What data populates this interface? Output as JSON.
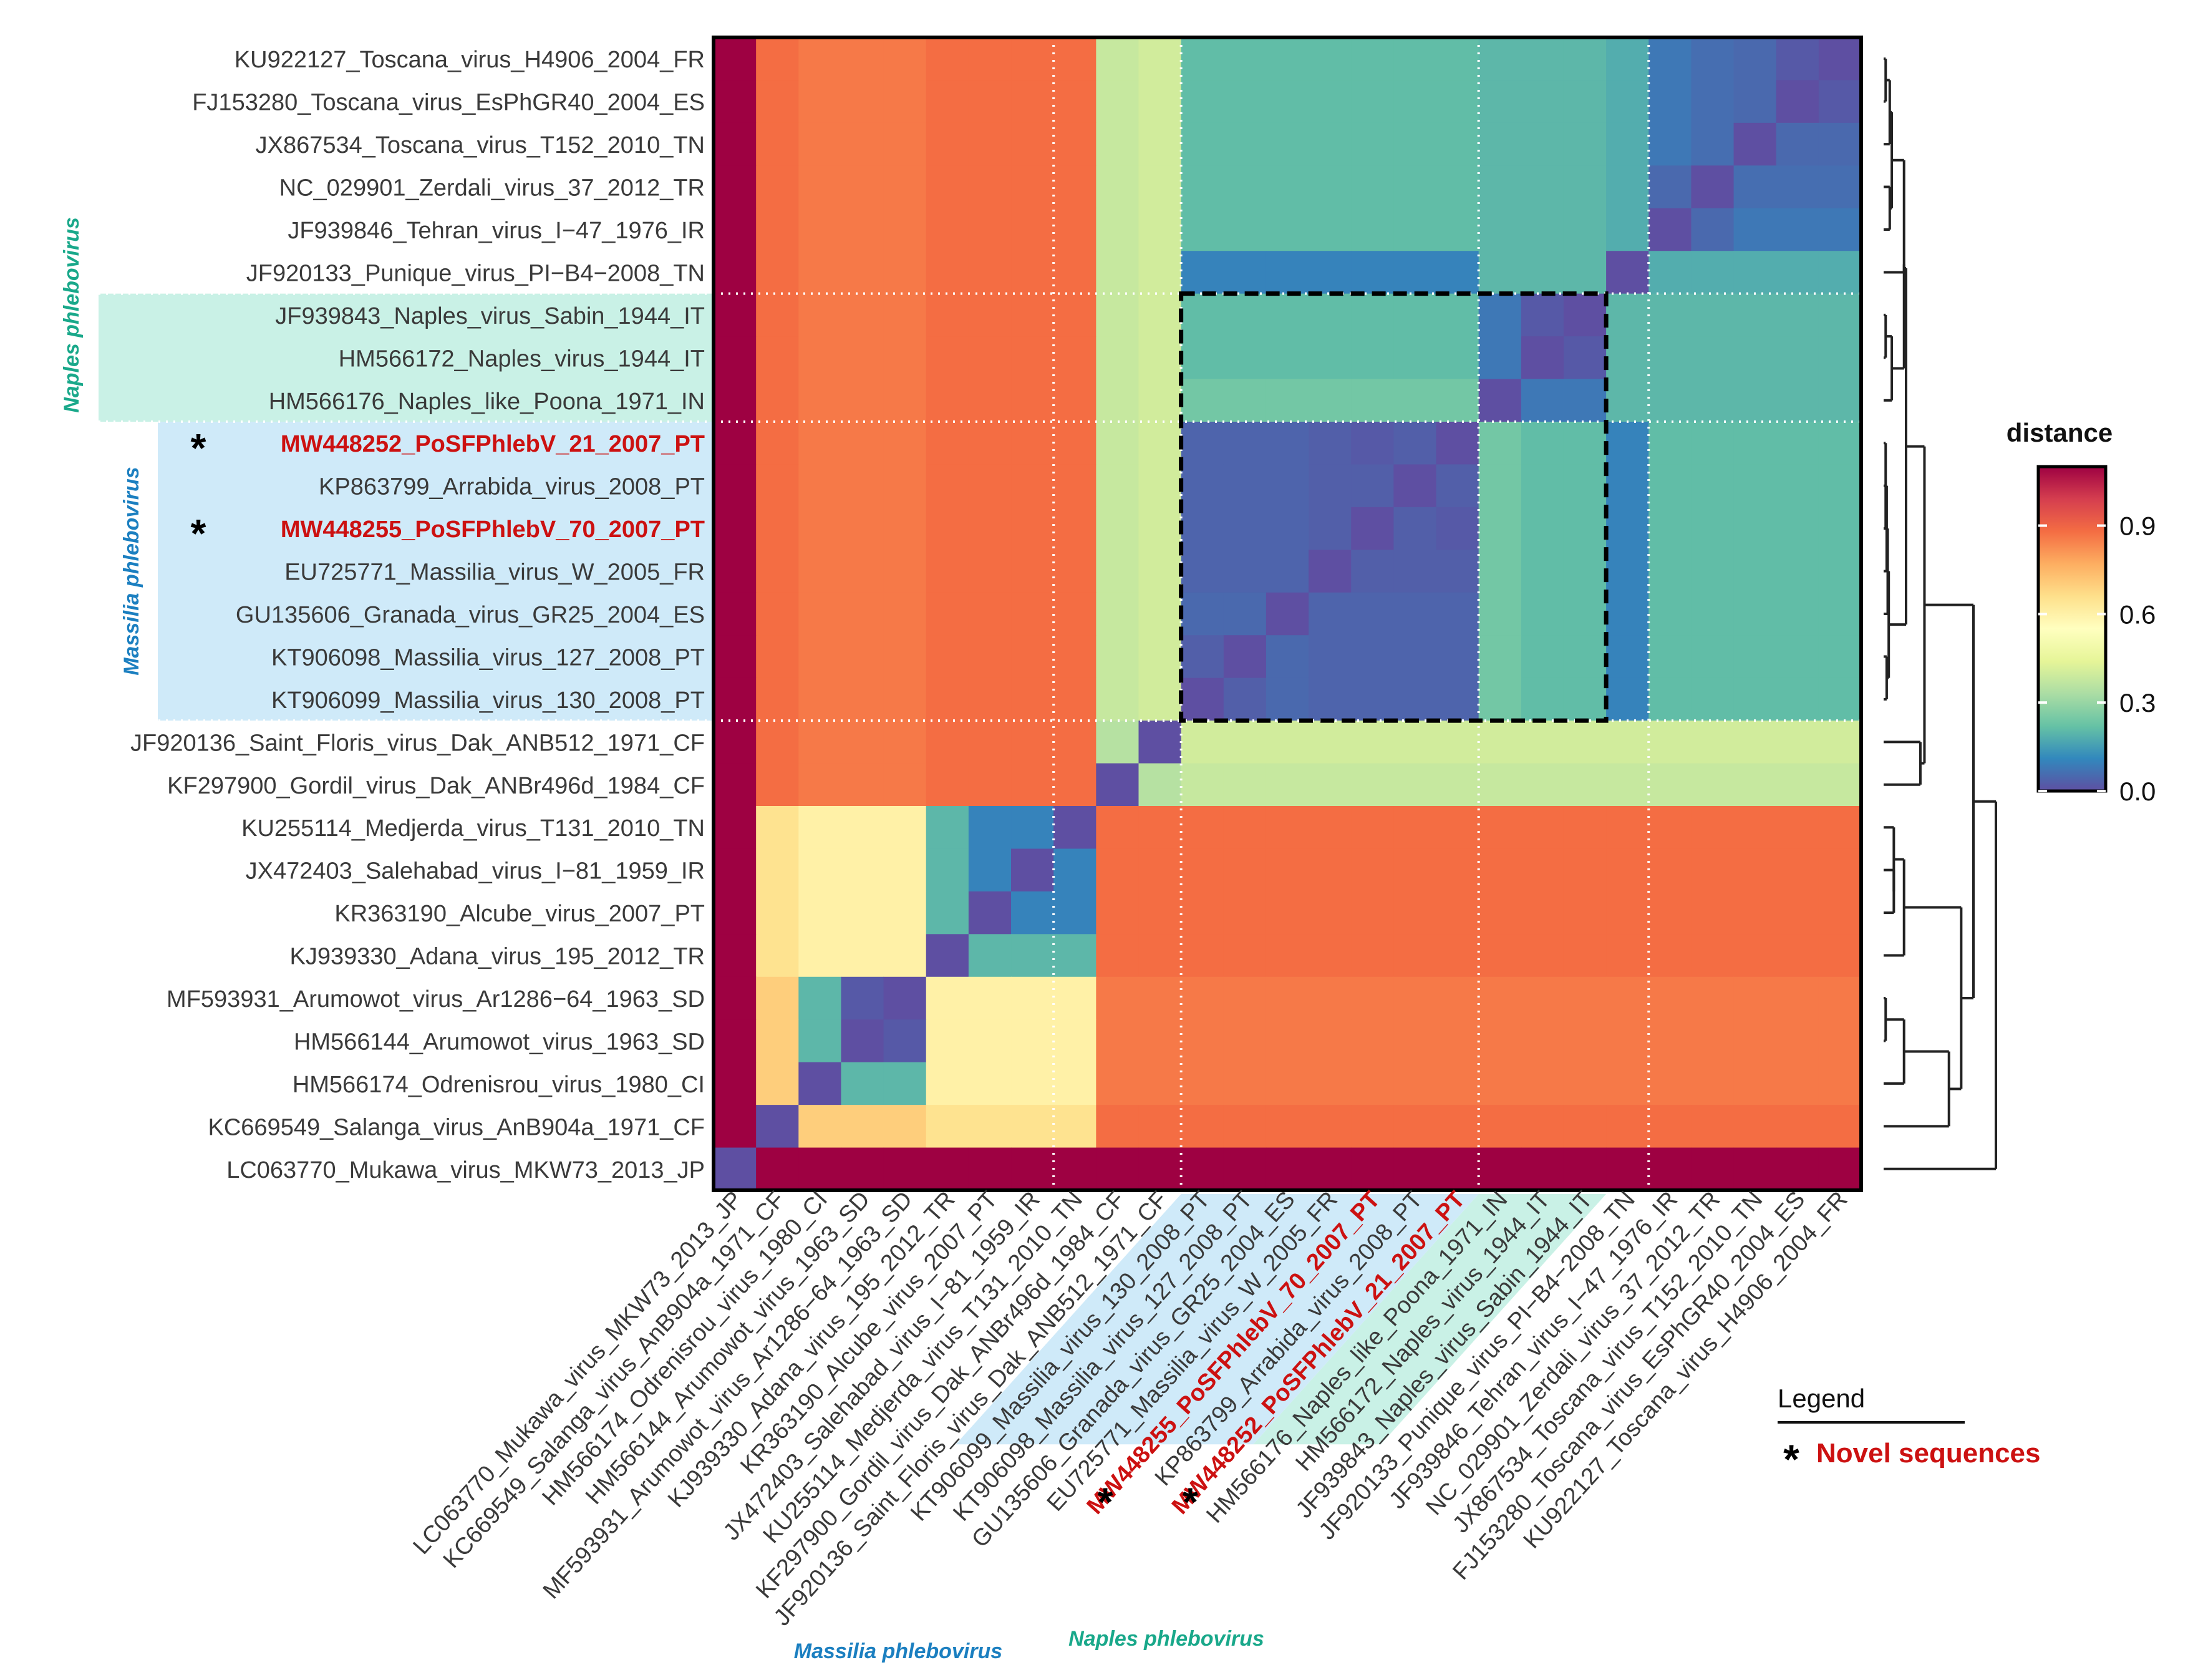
{
  "chart_data": {
    "type": "heatmap",
    "title": "",
    "sequences": [
      "KU922127_Toscana_virus_H4906_2004_FR",
      "FJ153280_Toscana_virus_EsPhGR40_2004_ES",
      "JX867534_Toscana_virus_T152_2010_TN",
      "NC_029901_Zerdali_virus_37_2012_TR",
      "JF939846_Tehran_virus_I−47_1976_IR",
      "JF920133_Punique_virus_PI−B4−2008_TN",
      "JF939843_Naples_virus_Sabin_1944_IT",
      "HM566172_Naples_virus_1944_IT",
      "HM566176_Naples_like_Poona_1971_IN",
      "MW448252_PoSFPhlebV_21_2007_PT",
      "KP863799_Arrabida_virus_2008_PT",
      "MW448255_PoSFPhlebV_70_2007_PT",
      "EU725771_Massilia_virus_W_2005_FR",
      "GU135606_Granada_virus_GR25_2004_ES",
      "KT906098_Massilia_virus_127_2008_PT",
      "KT906099_Massilia_virus_130_2008_PT",
      "JF920136_Saint_Floris_virus_Dak_ANB512_1971_CF",
      "KF297900_Gordil_virus_Dak_ANBr496d_1984_CF",
      "KU255114_Medjerda_virus_T131_2010_TN",
      "JX472403_Salehabad_virus_I−81_1959_IR",
      "KR363190_Alcube_virus_2007_PT",
      "KJ939330_Adana_virus_195_2012_TR",
      "MF593931_Arumowot_virus_Ar1286−64_1963_SD",
      "HM566144_Arumowot_virus_1963_SD",
      "HM566174_Odrenisrou_virus_1980_CI",
      "KC669549_Salanga_virus_AnB904a_1971_CF",
      "LC063770_Mukawa_virus_MKW73_2013_JP"
    ],
    "novel_sequences": [
      "MW448252_PoSFPhlebV_21_2007_PT",
      "MW448255_PoSFPhlebV_70_2007_PT"
    ],
    "column_order": "reverse of row order",
    "matrix": [
      [
        0.0,
        0.02,
        0.05,
        0.06,
        0.08,
        0.18,
        0.2,
        0.2,
        0.2,
        0.21,
        0.21,
        0.21,
        0.21,
        0.21,
        0.21,
        0.21,
        0.4,
        0.38,
        0.88,
        0.88,
        0.88,
        0.88,
        0.86,
        0.86,
        0.86,
        0.88,
        1.1
      ],
      [
        0.02,
        0.0,
        0.05,
        0.06,
        0.08,
        0.18,
        0.2,
        0.2,
        0.2,
        0.21,
        0.21,
        0.21,
        0.21,
        0.21,
        0.21,
        0.21,
        0.4,
        0.38,
        0.88,
        0.88,
        0.88,
        0.88,
        0.86,
        0.86,
        0.86,
        0.88,
        1.1
      ],
      [
        0.05,
        0.05,
        0.0,
        0.06,
        0.08,
        0.18,
        0.2,
        0.2,
        0.2,
        0.21,
        0.21,
        0.21,
        0.21,
        0.21,
        0.21,
        0.21,
        0.4,
        0.38,
        0.88,
        0.88,
        0.88,
        0.88,
        0.86,
        0.86,
        0.86,
        0.88,
        1.1
      ],
      [
        0.06,
        0.06,
        0.06,
        0.0,
        0.05,
        0.18,
        0.2,
        0.2,
        0.2,
        0.21,
        0.21,
        0.21,
        0.21,
        0.21,
        0.21,
        0.21,
        0.4,
        0.38,
        0.88,
        0.88,
        0.88,
        0.88,
        0.86,
        0.86,
        0.86,
        0.88,
        1.1
      ],
      [
        0.08,
        0.08,
        0.08,
        0.05,
        0.0,
        0.18,
        0.2,
        0.2,
        0.2,
        0.21,
        0.21,
        0.21,
        0.21,
        0.21,
        0.21,
        0.21,
        0.4,
        0.38,
        0.88,
        0.88,
        0.88,
        0.88,
        0.86,
        0.86,
        0.86,
        0.88,
        1.1
      ],
      [
        0.18,
        0.18,
        0.18,
        0.18,
        0.18,
        0.0,
        0.2,
        0.2,
        0.2,
        0.1,
        0.1,
        0.1,
        0.1,
        0.1,
        0.1,
        0.1,
        0.4,
        0.38,
        0.88,
        0.88,
        0.88,
        0.88,
        0.86,
        0.86,
        0.86,
        0.88,
        1.1
      ],
      [
        0.2,
        0.2,
        0.2,
        0.2,
        0.2,
        0.2,
        0.0,
        0.02,
        0.08,
        0.21,
        0.21,
        0.21,
        0.21,
        0.21,
        0.21,
        0.21,
        0.4,
        0.38,
        0.88,
        0.88,
        0.88,
        0.88,
        0.86,
        0.86,
        0.86,
        0.88,
        1.1
      ],
      [
        0.2,
        0.2,
        0.2,
        0.2,
        0.2,
        0.2,
        0.02,
        0.0,
        0.08,
        0.21,
        0.21,
        0.21,
        0.21,
        0.21,
        0.21,
        0.21,
        0.4,
        0.38,
        0.88,
        0.88,
        0.88,
        0.88,
        0.86,
        0.86,
        0.86,
        0.88,
        1.1
      ],
      [
        0.2,
        0.2,
        0.2,
        0.2,
        0.2,
        0.2,
        0.08,
        0.08,
        0.0,
        0.24,
        0.24,
        0.24,
        0.24,
        0.24,
        0.24,
        0.24,
        0.4,
        0.38,
        0.88,
        0.88,
        0.88,
        0.88,
        0.86,
        0.86,
        0.86,
        0.88,
        1.1
      ],
      [
        0.21,
        0.21,
        0.21,
        0.21,
        0.21,
        0.1,
        0.21,
        0.21,
        0.24,
        0.0,
        0.03,
        0.02,
        0.03,
        0.04,
        0.04,
        0.04,
        0.4,
        0.38,
        0.88,
        0.88,
        0.88,
        0.88,
        0.86,
        0.86,
        0.86,
        0.88,
        1.1
      ],
      [
        0.21,
        0.21,
        0.21,
        0.21,
        0.21,
        0.1,
        0.21,
        0.21,
        0.24,
        0.03,
        0.0,
        0.03,
        0.03,
        0.04,
        0.04,
        0.04,
        0.4,
        0.38,
        0.88,
        0.88,
        0.88,
        0.88,
        0.86,
        0.86,
        0.86,
        0.88,
        1.1
      ],
      [
        0.21,
        0.21,
        0.21,
        0.21,
        0.21,
        0.1,
        0.21,
        0.21,
        0.24,
        0.02,
        0.03,
        0.0,
        0.03,
        0.04,
        0.04,
        0.04,
        0.4,
        0.38,
        0.88,
        0.88,
        0.88,
        0.88,
        0.86,
        0.86,
        0.86,
        0.88,
        1.1
      ],
      [
        0.21,
        0.21,
        0.21,
        0.21,
        0.21,
        0.1,
        0.21,
        0.21,
        0.24,
        0.03,
        0.03,
        0.03,
        0.0,
        0.04,
        0.04,
        0.04,
        0.4,
        0.38,
        0.88,
        0.88,
        0.88,
        0.88,
        0.86,
        0.86,
        0.86,
        0.88,
        1.1
      ],
      [
        0.21,
        0.21,
        0.21,
        0.21,
        0.21,
        0.1,
        0.21,
        0.21,
        0.24,
        0.04,
        0.04,
        0.04,
        0.04,
        0.0,
        0.05,
        0.05,
        0.4,
        0.38,
        0.88,
        0.88,
        0.88,
        0.88,
        0.86,
        0.86,
        0.86,
        0.88,
        1.1
      ],
      [
        0.21,
        0.21,
        0.21,
        0.21,
        0.21,
        0.1,
        0.21,
        0.21,
        0.24,
        0.04,
        0.04,
        0.04,
        0.04,
        0.05,
        0.0,
        0.03,
        0.4,
        0.38,
        0.88,
        0.88,
        0.88,
        0.88,
        0.86,
        0.86,
        0.86,
        0.88,
        1.1
      ],
      [
        0.21,
        0.21,
        0.21,
        0.21,
        0.21,
        0.1,
        0.21,
        0.21,
        0.24,
        0.04,
        0.04,
        0.04,
        0.04,
        0.05,
        0.03,
        0.0,
        0.4,
        0.38,
        0.88,
        0.88,
        0.88,
        0.88,
        0.86,
        0.86,
        0.86,
        0.88,
        1.1
      ],
      [
        0.4,
        0.4,
        0.4,
        0.4,
        0.4,
        0.4,
        0.4,
        0.4,
        0.4,
        0.4,
        0.4,
        0.4,
        0.4,
        0.4,
        0.4,
        0.4,
        0.0,
        0.35,
        0.88,
        0.88,
        0.88,
        0.88,
        0.86,
        0.86,
        0.86,
        0.88,
        1.1
      ],
      [
        0.38,
        0.38,
        0.38,
        0.38,
        0.38,
        0.38,
        0.38,
        0.38,
        0.38,
        0.38,
        0.38,
        0.38,
        0.38,
        0.38,
        0.38,
        0.38,
        0.35,
        0.0,
        0.88,
        0.88,
        0.88,
        0.88,
        0.86,
        0.86,
        0.86,
        0.88,
        1.1
      ],
      [
        0.88,
        0.88,
        0.88,
        0.88,
        0.88,
        0.88,
        0.88,
        0.88,
        0.88,
        0.88,
        0.88,
        0.88,
        0.88,
        0.88,
        0.88,
        0.88,
        0.88,
        0.88,
        0.0,
        0.1,
        0.1,
        0.2,
        0.6,
        0.6,
        0.6,
        0.65,
        1.1
      ],
      [
        0.88,
        0.88,
        0.88,
        0.88,
        0.88,
        0.88,
        0.88,
        0.88,
        0.88,
        0.88,
        0.88,
        0.88,
        0.88,
        0.88,
        0.88,
        0.88,
        0.88,
        0.88,
        0.1,
        0.0,
        0.1,
        0.2,
        0.6,
        0.6,
        0.6,
        0.65,
        1.1
      ],
      [
        0.88,
        0.88,
        0.88,
        0.88,
        0.88,
        0.88,
        0.88,
        0.88,
        0.88,
        0.88,
        0.88,
        0.88,
        0.88,
        0.88,
        0.88,
        0.88,
        0.88,
        0.88,
        0.1,
        0.1,
        0.0,
        0.2,
        0.6,
        0.6,
        0.6,
        0.65,
        1.1
      ],
      [
        0.88,
        0.88,
        0.88,
        0.88,
        0.88,
        0.88,
        0.88,
        0.88,
        0.88,
        0.88,
        0.88,
        0.88,
        0.88,
        0.88,
        0.88,
        0.88,
        0.88,
        0.88,
        0.2,
        0.2,
        0.2,
        0.0,
        0.6,
        0.6,
        0.6,
        0.65,
        1.1
      ],
      [
        0.86,
        0.86,
        0.86,
        0.86,
        0.86,
        0.86,
        0.86,
        0.86,
        0.86,
        0.86,
        0.86,
        0.86,
        0.86,
        0.86,
        0.86,
        0.86,
        0.86,
        0.86,
        0.6,
        0.6,
        0.6,
        0.6,
        0.0,
        0.02,
        0.2,
        0.7,
        1.1
      ],
      [
        0.86,
        0.86,
        0.86,
        0.86,
        0.86,
        0.86,
        0.86,
        0.86,
        0.86,
        0.86,
        0.86,
        0.86,
        0.86,
        0.86,
        0.86,
        0.86,
        0.86,
        0.86,
        0.6,
        0.6,
        0.6,
        0.6,
        0.02,
        0.0,
        0.2,
        0.7,
        1.1
      ],
      [
        0.86,
        0.86,
        0.86,
        0.86,
        0.86,
        0.86,
        0.86,
        0.86,
        0.86,
        0.86,
        0.86,
        0.86,
        0.86,
        0.86,
        0.86,
        0.86,
        0.86,
        0.86,
        0.6,
        0.6,
        0.6,
        0.6,
        0.2,
        0.2,
        0.0,
        0.7,
        1.1
      ],
      [
        0.88,
        0.88,
        0.88,
        0.88,
        0.88,
        0.88,
        0.88,
        0.88,
        0.88,
        0.88,
        0.88,
        0.88,
        0.88,
        0.88,
        0.88,
        0.88,
        0.88,
        0.88,
        0.65,
        0.65,
        0.65,
        0.65,
        0.7,
        0.7,
        0.7,
        0.0,
        1.1
      ],
      [
        1.1,
        1.1,
        1.1,
        1.1,
        1.1,
        1.1,
        1.1,
        1.1,
        1.1,
        1.1,
        1.1,
        1.1,
        1.1,
        1.1,
        1.1,
        1.1,
        1.1,
        1.1,
        1.1,
        1.1,
        1.1,
        1.1,
        1.1,
        1.1,
        1.1,
        1.1,
        0.0
      ]
    ],
    "value_range": [
      0,
      1.1
    ],
    "colorbar": {
      "title": "distance",
      "ticks": [
        0.0,
        0.3,
        0.6,
        0.9
      ],
      "tick_labels": [
        "0.0",
        "0.3",
        "0.6",
        "0.9"
      ]
    },
    "colormap": "Spectral (reversed): purple = 0, red = high",
    "groups": [
      {
        "name": "Naples phlebovirus",
        "members": [
          "JF939843_Naples_virus_Sabin_1944_IT",
          "HM566172_Naples_virus_1944_IT",
          "HM566176_Naples_like_Poona_1971_IN"
        ],
        "color": "#19a88a"
      },
      {
        "name": "Massilia phlebovirus",
        "members": [
          "MW448252_PoSFPhlebV_21_2007_PT",
          "KP863799_Arrabida_virus_2008_PT",
          "MW448255_PoSFPhlebV_70_2007_PT",
          "EU725771_Massilia_virus_W_2005_FR",
          "GU135606_Granada_virus_GR25_2004_ES",
          "KT906098_Massilia_virus_127_2008_PT",
          "KT906099_Massilia_virus_130_2008_PT"
        ],
        "color": "#1b7fc0"
      }
    ],
    "dendrogram": "hierarchical clustering tree of the 27 sequences, drawn on the right",
    "legend": {
      "title": "Legend",
      "marker": "*",
      "label": "Novel sequences",
      "label_color": "#cc1111"
    }
  },
  "colors": {
    "novel": "#cc1111",
    "naples": "#19a88a",
    "massilia": "#1b7fc0",
    "naples_fill": "#c9f1e6",
    "massilia_fill": "#cfeaf9"
  }
}
